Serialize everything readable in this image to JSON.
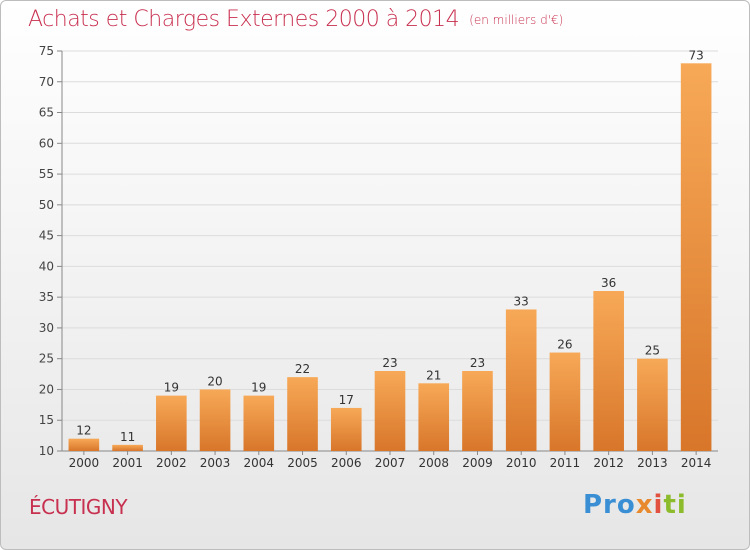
{
  "header": {
    "title": "Achats et Charges Externes 2000 à 2014",
    "unit": "(en milliers d'€)"
  },
  "footer": {
    "commune": "ÉCUTIGNY",
    "logo_parts": [
      "Pro",
      "x",
      "i",
      "ti"
    ]
  },
  "colors": {
    "title": "#c8304f",
    "bar_light": "#f6a552",
    "bar_dark": "#d9772a",
    "gridline": "#dcdcdc"
  },
  "chart_data": {
    "type": "bar",
    "title": "Achats et Charges Externes 2000 à 2014",
    "xlabel": "",
    "ylabel": "",
    "categories": [
      "2000",
      "2001",
      "2002",
      "2003",
      "2004",
      "2005",
      "2006",
      "2007",
      "2008",
      "2009",
      "2010",
      "2011",
      "2012",
      "2013",
      "2014"
    ],
    "values": [
      12,
      11,
      19,
      20,
      19,
      22,
      17,
      23,
      21,
      23,
      33,
      26,
      36,
      25,
      73
    ],
    "ylim": [
      10,
      75
    ],
    "yticks": [
      10,
      15,
      20,
      25,
      30,
      35,
      40,
      45,
      50,
      55,
      60,
      65,
      70,
      75
    ],
    "grid": true,
    "data_labels": true
  }
}
